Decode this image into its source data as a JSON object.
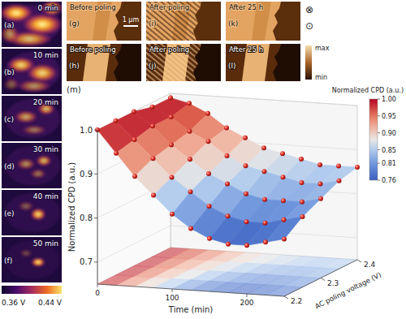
{
  "chart_data": {
    "type": "surface",
    "panel_label": "(m)",
    "xlabel": "Time (min)",
    "ylabel": "AC poling voltage (V)",
    "zlabel": "Normalized CPD (a.u.)",
    "x": [
      0,
      25,
      50,
      75,
      100,
      125,
      150,
      175,
      200,
      225,
      250
    ],
    "y": [
      2.2,
      2.25,
      2.3,
      2.35,
      2.4
    ],
    "z": [
      [
        1.0,
        0.95,
        0.9,
        0.86,
        0.82,
        0.79,
        0.77,
        0.76,
        0.76,
        0.77,
        0.78
      ],
      [
        1.0,
        0.96,
        0.92,
        0.88,
        0.85,
        0.82,
        0.8,
        0.79,
        0.79,
        0.8,
        0.81
      ],
      [
        1.0,
        0.97,
        0.93,
        0.9,
        0.87,
        0.85,
        0.83,
        0.82,
        0.82,
        0.82,
        0.83
      ],
      [
        0.99,
        0.97,
        0.94,
        0.92,
        0.89,
        0.87,
        0.86,
        0.85,
        0.84,
        0.84,
        0.85
      ],
      [
        0.99,
        0.98,
        0.96,
        0.93,
        0.91,
        0.89,
        0.88,
        0.87,
        0.86,
        0.86,
        0.86
      ]
    ],
    "xlim": [
      0,
      250
    ],
    "xticks": [
      0,
      100,
      200
    ],
    "ylim": [
      2.2,
      2.4
    ],
    "yticks": [
      2.2,
      2.3,
      2.4
    ],
    "zlim": [
      0.65,
      1.0
    ],
    "zticks": [
      0.7,
      0.8,
      0.9,
      {
        "value": 1,
        "label": "1.0"
      }
    ],
    "marker": "sphere",
    "colorbar": {
      "label": "Normalized CPD (a.u.)",
      "range": [
        0.76,
        1.0
      ],
      "ticks": [
        {
          "value": 1,
          "label": "1.00"
        },
        0.95,
        {
          "value": 0.9,
          "label": "0.90"
        },
        0.85,
        0.81,
        0.76
      ]
    }
  },
  "kpfm_panels": [
    {
      "label": "(a)",
      "caption": "0 min"
    },
    {
      "label": "(b)",
      "caption": "10 min"
    },
    {
      "label": "(c)",
      "caption": "20 min"
    },
    {
      "label": "(d)",
      "caption": "30 min"
    },
    {
      "label": "(e)",
      "caption": "40 min"
    },
    {
      "label": "(f)",
      "caption": "50 min"
    }
  ],
  "kpfm_colorbar": {
    "range": [
      0.36,
      0.44
    ],
    "ticks": [
      {
        "value": 0.36,
        "label": "0.36 V"
      },
      {
        "value": 0.44,
        "label": "0.44 V"
      }
    ]
  },
  "pfm_panels": [
    {
      "label": "(g)",
      "caption": "Before poling"
    },
    {
      "label": "(h)",
      "caption": "Before poling"
    },
    {
      "label": "(i)",
      "caption": "After poling"
    },
    {
      "label": "(j)",
      "caption": "After poling"
    },
    {
      "label": "(k)",
      "caption": "After 25 h"
    },
    {
      "label": "(l)",
      "caption": "After 25 h"
    }
  ],
  "scale_bar": "1 μm",
  "polarization_symbols": [
    "⊗",
    "⊙"
  ],
  "pfm_colorbar": {
    "max_label": "max",
    "min_label": "min"
  }
}
